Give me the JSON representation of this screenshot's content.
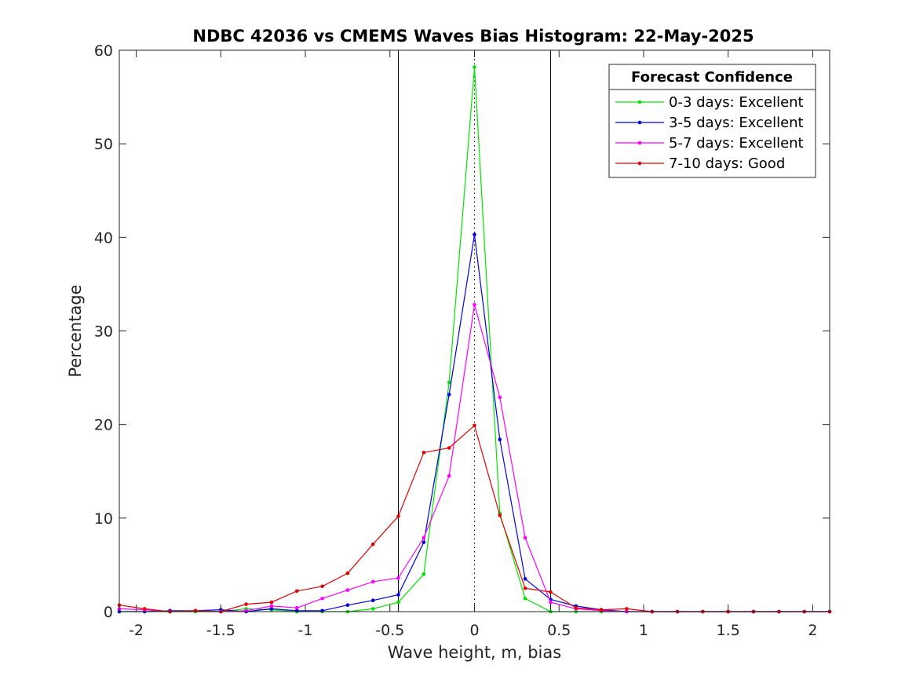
{
  "chart_data": {
    "type": "line",
    "title": "NDBC 42036 vs CMEMS Waves Bias Histogram: 22-May-2025",
    "xlabel": "Wave height, m, bias",
    "ylabel": "Percentage",
    "xlim": [
      -2.1,
      2.1
    ],
    "ylim": [
      0,
      60
    ],
    "xticks": [
      -2,
      -1.5,
      -1,
      -0.5,
      0,
      0.5,
      1,
      1.5,
      2
    ],
    "xtick_labels": [
      "-2",
      "-1.5",
      "-1",
      "-0.5",
      "0",
      "0.5",
      "1",
      "1.5",
      "2"
    ],
    "yticks": [
      0,
      10,
      20,
      30,
      40,
      50,
      60
    ],
    "ytick_labels": [
      "0",
      "10",
      "20",
      "30",
      "40",
      "50",
      "60"
    ],
    "reference_lines": [
      {
        "x": -0.45,
        "style": "solid"
      },
      {
        "x": 0.45,
        "style": "solid"
      },
      {
        "x": 0,
        "style": "dotted"
      }
    ],
    "legend": {
      "title": "Forecast Confidence",
      "position": "top-right"
    },
    "x": [
      -2.1,
      -1.95,
      -1.8,
      -1.65,
      -1.5,
      -1.35,
      -1.2,
      -1.05,
      -0.9,
      -0.75,
      -0.6,
      -0.45,
      -0.3,
      -0.15,
      0,
      0.15,
      0.3,
      0.45,
      0.6,
      0.75,
      0.9,
      1.05,
      1.2,
      1.35,
      1.5,
      1.65,
      1.8,
      1.95,
      2.1
    ],
    "series": [
      {
        "name": "0-3 days: Excellent",
        "color": "#00e600",
        "values": [
          0,
          0,
          0,
          0,
          0,
          0.3,
          0.2,
          0,
          0,
          0,
          0.3,
          1.0,
          4.0,
          24.5,
          58.2,
          10.5,
          1.4,
          0,
          0,
          0,
          0,
          0,
          0,
          0,
          0,
          0,
          0,
          0,
          0
        ]
      },
      {
        "name": "3-5 days: Excellent",
        "color": "#0000e6",
        "values": [
          0,
          0,
          0.1,
          0.1,
          0.2,
          0,
          0.3,
          0.1,
          0.1,
          0.7,
          1.2,
          1.8,
          7.4,
          23.2,
          40.3,
          18.4,
          3.5,
          1.3,
          0.6,
          0.2,
          0,
          0,
          0,
          0,
          0,
          0,
          0,
          0,
          0
        ]
      },
      {
        "name": "5-7 days: Excellent",
        "color": "#ff00ff",
        "values": [
          0.3,
          0.2,
          0,
          0.1,
          0,
          0.1,
          0.6,
          0.4,
          1.4,
          2.3,
          3.2,
          3.6,
          7.9,
          14.5,
          32.8,
          22.9,
          7.9,
          1.0,
          0.3,
          0.1,
          0,
          0,
          0,
          0,
          0,
          0,
          0,
          0,
          0
        ]
      },
      {
        "name": "7-10 days: Good",
        "color": "#e60000",
        "values": [
          0.7,
          0.3,
          0,
          0.1,
          0,
          0.8,
          1.0,
          2.2,
          2.7,
          4.1,
          7.2,
          10.2,
          17.0,
          17.5,
          19.9,
          10.3,
          2.5,
          2.1,
          0.4,
          0.2,
          0.3,
          0,
          0,
          0,
          0,
          0,
          0,
          0,
          0
        ]
      }
    ]
  }
}
